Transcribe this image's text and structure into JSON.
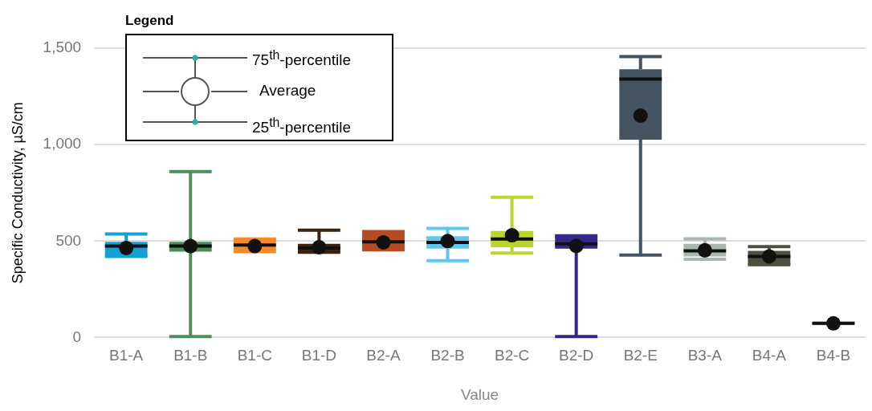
{
  "chart_data": {
    "type": "box",
    "xlabel": "Value",
    "ylabel": "Specific Conductivity, µS/cm",
    "legend_title": "Legend",
    "annotations": [
      "75$^{th}$-percentile",
      "Average",
      "25$^{th}$-percentile"
    ],
    "categories": [
      "B1-A",
      "B1-B",
      "B1-C",
      "B1-D",
      "B2-A",
      "B2-B",
      "B2-C",
      "B2-D",
      "B2-E",
      "B3-A",
      "B4-A",
      "B4-B"
    ],
    "colors": [
      "#13a2d6",
      "#4d8f5c",
      "#f58a2a",
      "#3a2210",
      "#b84a24",
      "#5cc8f0",
      "#bcd42e",
      "#33288a",
      "#44535f",
      "#a9b7ad",
      "#4b5040",
      "#c4cdc8"
    ],
    "boxes": [
      {
        "low": 420,
        "q1": 420,
        "median": 474,
        "q3": 496,
        "high": 537,
        "mean": 464
      },
      {
        "low": 5,
        "q1": 445,
        "median": 474,
        "q3": 496,
        "high": 860,
        "mean": 474
      },
      {
        "low": 445,
        "q1": 445,
        "median": 479,
        "q3": 510,
        "high": 510,
        "mean": 474
      },
      {
        "low": 442,
        "q1": 442,
        "median": 464,
        "q3": 486,
        "high": 556,
        "mean": 468
      },
      {
        "low": 454,
        "q1": 454,
        "median": 496,
        "q3": 549,
        "high": 549,
        "mean": 493
      },
      {
        "low": 398,
        "q1": 461,
        "median": 493,
        "q3": 525,
        "high": 566,
        "mean": 500
      },
      {
        "low": 438,
        "q1": 468,
        "median": 510,
        "q3": 552,
        "high": 727,
        "mean": 530
      },
      {
        "low": 5,
        "q1": 461,
        "median": 486,
        "q3": 527,
        "high": 527,
        "mean": 475
      },
      {
        "low": 427,
        "q1": 1026,
        "median": 1340,
        "q3": 1391,
        "high": 1456,
        "mean": 1150
      },
      {
        "low": 405,
        "q1": 420,
        "median": 449,
        "q3": 486,
        "high": 512,
        "mean": 452
      },
      {
        "low": 377,
        "q1": 377,
        "median": 420,
        "q3": 449,
        "high": 471,
        "mean": 420
      },
      {
        "low": 73,
        "q1": 73,
        "median": 73,
        "q3": 73,
        "high": 73,
        "mean": 73
      }
    ],
    "ylim": [
      0,
      1500
    ],
    "yticks": [
      0,
      500,
      {
        "value": 1000,
        "label": "1,000"
      },
      {
        "value": 1500,
        "label": "1,500"
      }
    ],
    "grid": "y"
  }
}
